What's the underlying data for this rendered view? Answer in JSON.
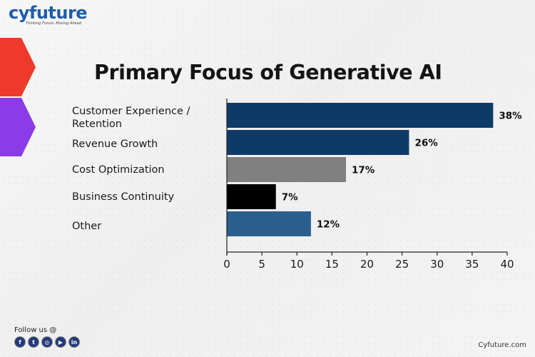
{
  "brand": {
    "name": "cyfuture",
    "tagline": "Thinking Future. Moving Ahead.",
    "site": "Cyfuture.com",
    "follow_label": "Follow us @",
    "socials": [
      {
        "name": "facebook",
        "glyph": "f"
      },
      {
        "name": "twitter",
        "glyph": "t"
      },
      {
        "name": "instagram",
        "glyph": "◎"
      },
      {
        "name": "youtube",
        "glyph": "▶"
      },
      {
        "name": "linkedin",
        "glyph": "in"
      }
    ],
    "colors": {
      "logo": "#1d5ea8",
      "arrow_red": "#ee3a2c",
      "arrow_purple": "#8b3be8"
    }
  },
  "chart_data": {
    "type": "bar",
    "orientation": "horizontal",
    "title": "Primary Focus of Generative AI",
    "categories": [
      "Customer Experience / Retention",
      "Revenue Growth",
      "Cost Optimization",
      "Business Continuity",
      "Other"
    ],
    "category_lines": [
      [
        "Customer Experience /",
        "Retention"
      ],
      [
        "Revenue Growth"
      ],
      [
        "Cost Optimization"
      ],
      [
        "Business Continuity"
      ],
      [
        "Other"
      ]
    ],
    "values": [
      38,
      26,
      17,
      7,
      12
    ],
    "value_labels": [
      "38%",
      "26%",
      "17%",
      "7%",
      "12%"
    ],
    "colors": [
      "#0e3a68",
      "#0e3a68",
      "#808080",
      "#000000",
      "#2b5f8d"
    ],
    "xlim": [
      0,
      40
    ],
    "xticks": [
      0,
      5,
      10,
      15,
      20,
      25,
      30,
      35,
      40
    ],
    "xlabel": "",
    "ylabel": "",
    "grid": false,
    "legend": "none"
  }
}
